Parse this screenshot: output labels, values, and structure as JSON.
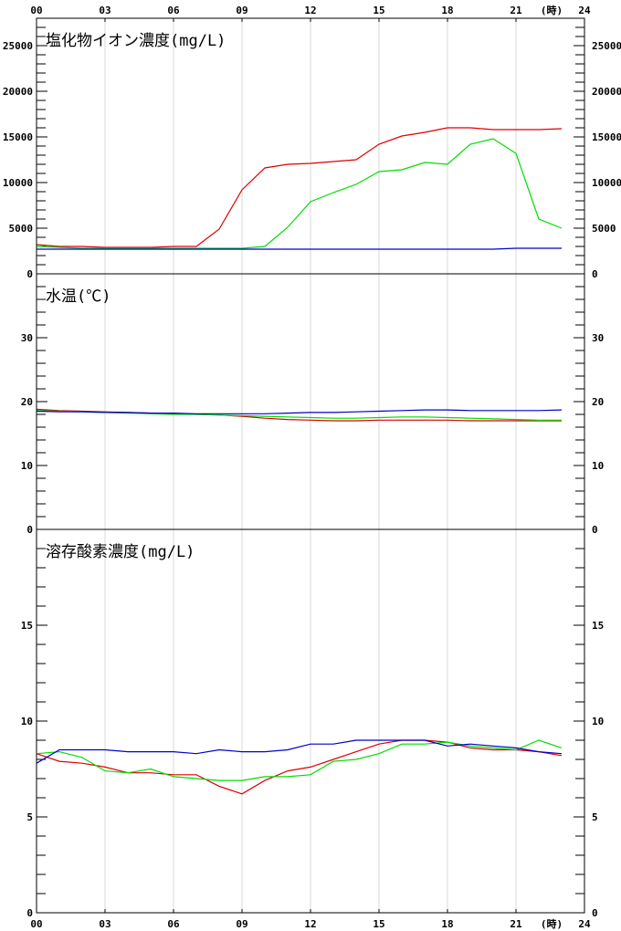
{
  "x_axis": {
    "unit_label": "(時)",
    "ticks": [
      "00",
      "03",
      "06",
      "09",
      "12",
      "15",
      "18",
      "21",
      "24"
    ],
    "range": [
      0,
      24
    ]
  },
  "colors": {
    "series1": "#dd0000",
    "series2": "#00dd00",
    "series3": "#0000cc"
  },
  "chart_data": [
    {
      "type": "line",
      "title": "塩化物イオン濃度(mg/L)",
      "ylim": [
        0,
        28000
      ],
      "yticks": [
        0,
        5000,
        10000,
        15000,
        20000,
        25000
      ],
      "x": [
        0,
        1,
        2,
        3,
        4,
        5,
        6,
        7,
        8,
        9,
        10,
        11,
        12,
        13,
        14,
        15,
        16,
        17,
        18,
        19,
        20,
        21,
        22,
        23
      ],
      "series": [
        {
          "color": "#dd0000",
          "values": [
            3200,
            3000,
            3000,
            2900,
            2900,
            2900,
            3000,
            3000,
            4900,
            9200,
            11600,
            12000,
            12100,
            12300,
            12500,
            14200,
            15100,
            15500,
            16000,
            16000,
            15800,
            15800,
            15800,
            15900
          ]
        },
        {
          "color": "#00dd00",
          "values": [
            3000,
            2900,
            2800,
            2800,
            2800,
            2800,
            2800,
            2800,
            2800,
            2800,
            3000,
            5100,
            7900,
            8900,
            9800,
            11200,
            11400,
            12200,
            12000,
            14200,
            14800,
            13200,
            6000,
            5000
          ]
        },
        {
          "color": "#0000cc",
          "values": [
            2700,
            2700,
            2700,
            2700,
            2700,
            2700,
            2700,
            2700,
            2700,
            2700,
            2700,
            2700,
            2700,
            2700,
            2700,
            2700,
            2700,
            2700,
            2700,
            2700,
            2700,
            2800,
            2800,
            2800
          ]
        }
      ]
    },
    {
      "type": "line",
      "title": "水温(℃)",
      "ylim": [
        0,
        40
      ],
      "yticks": [
        0,
        10,
        20,
        30
      ],
      "x": [
        0,
        1,
        2,
        3,
        4,
        5,
        6,
        7,
        8,
        9,
        10,
        11,
        12,
        13,
        14,
        15,
        16,
        17,
        18,
        19,
        20,
        21,
        22,
        23
      ],
      "series": [
        {
          "color": "#dd0000",
          "values": [
            18.8,
            18.6,
            18.5,
            18.4,
            18.3,
            18.2,
            18.1,
            18.0,
            17.9,
            17.7,
            17.4,
            17.2,
            17.1,
            17.0,
            17.0,
            17.1,
            17.1,
            17.1,
            17.1,
            17.0,
            17.0,
            17.0,
            17.0,
            17.0
          ]
        },
        {
          "color": "#00dd00",
          "values": [
            18.6,
            18.5,
            18.4,
            18.3,
            18.2,
            18.1,
            18.0,
            18.0,
            17.9,
            17.8,
            17.7,
            17.6,
            17.5,
            17.4,
            17.4,
            17.5,
            17.6,
            17.6,
            17.5,
            17.4,
            17.3,
            17.2,
            17.1,
            17.1
          ]
        },
        {
          "color": "#0000cc",
          "values": [
            18.5,
            18.4,
            18.4,
            18.3,
            18.3,
            18.2,
            18.2,
            18.1,
            18.1,
            18.1,
            18.1,
            18.2,
            18.3,
            18.3,
            18.4,
            18.5,
            18.6,
            18.7,
            18.7,
            18.6,
            18.6,
            18.6,
            18.6,
            18.7
          ]
        }
      ]
    },
    {
      "type": "line",
      "title": "溶存酸素濃度(mg/L)",
      "ylim": [
        0,
        20
      ],
      "yticks": [
        0,
        5,
        10,
        15
      ],
      "x": [
        0,
        1,
        2,
        3,
        4,
        5,
        6,
        7,
        8,
        9,
        10,
        11,
        12,
        13,
        14,
        15,
        16,
        17,
        18,
        19,
        20,
        21,
        22,
        23
      ],
      "series": [
        {
          "color": "#dd0000",
          "values": [
            8.3,
            7.9,
            7.8,
            7.6,
            7.3,
            7.3,
            7.2,
            7.2,
            6.6,
            6.2,
            6.9,
            7.4,
            7.6,
            8.0,
            8.4,
            8.8,
            9.0,
            9.0,
            8.9,
            8.6,
            8.5,
            8.5,
            8.4,
            8.2
          ]
        },
        {
          "color": "#00dd00",
          "values": [
            8.3,
            8.4,
            8.1,
            7.4,
            7.3,
            7.5,
            7.1,
            7.0,
            6.9,
            6.9,
            7.1,
            7.1,
            7.2,
            7.9,
            8.0,
            8.3,
            8.8,
            8.8,
            8.9,
            8.7,
            8.6,
            8.5,
            9.0,
            8.6
          ]
        },
        {
          "color": "#0000cc",
          "values": [
            7.8,
            8.5,
            8.5,
            8.5,
            8.4,
            8.4,
            8.4,
            8.3,
            8.5,
            8.4,
            8.4,
            8.5,
            8.8,
            8.8,
            9.0,
            9.0,
            9.0,
            9.0,
            8.7,
            8.8,
            8.7,
            8.6,
            8.4,
            8.3
          ]
        }
      ]
    }
  ]
}
